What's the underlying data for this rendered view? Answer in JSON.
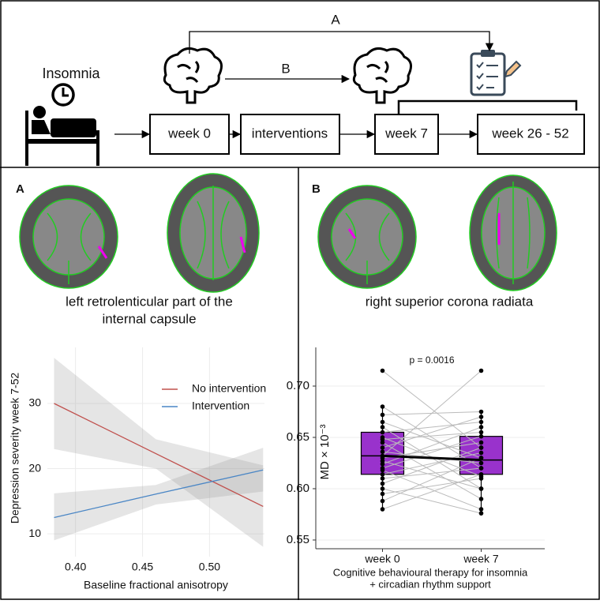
{
  "figure": {
    "top": {
      "arrow_a": "A",
      "arrow_b": "B",
      "condition": "Insomnia",
      "steps": [
        "week 0",
        "interventions",
        "week 7",
        "week 26 - 52"
      ]
    },
    "panels": [
      {
        "label": "A",
        "region": [
          "left retrolenticular part of the",
          "internal capsule"
        ]
      },
      {
        "label": "B",
        "region": [
          "right superior corona radiata"
        ]
      }
    ]
  },
  "chart_data": [
    {
      "type": "line",
      "ylabel": "Depression severity week 7-52",
      "xlabel": "Baseline fractional anisotropy",
      "xlim": [
        0.379,
        0.541
      ],
      "xticks": [
        {
          "value": 0.4,
          "label": "0.40"
        },
        {
          "value": 0.45,
          "label": "0.45"
        },
        {
          "value": 0.5,
          "label": "0.50"
        }
      ],
      "ylim": [
        6.5,
        38.6
      ],
      "yticks": [
        10,
        20,
        30
      ],
      "grid": true,
      "legend": "upper right",
      "x": [
        0.384,
        0.46,
        0.54
      ],
      "series": [
        {
          "name": "No intervention",
          "color": "#c0504d",
          "values": [
            30,
            22.3,
            14.2
          ],
          "ci_lower": [
            23,
            20,
            8
          ],
          "ci_upper": [
            37,
            24.5,
            20.5
          ]
        },
        {
          "name": "Intervention",
          "color": "#4a86c5",
          "values": [
            12.5,
            16.1,
            19.8
          ],
          "ci_lower": [
            9,
            14.5,
            16.5
          ],
          "ci_upper": [
            16.2,
            17.5,
            23.2
          ]
        }
      ]
    },
    {
      "type": "box",
      "annotation": "p = 0.0016",
      "ylabel": "MD × 10⁻³",
      "xlabel": [
        "Cognitive behavioural therapy for insomnia",
        "+ circadian rhythm support"
      ],
      "categories": [
        "week 0",
        "week 7"
      ],
      "color": "#9932cc",
      "grid": true,
      "ylim": [
        0.5415,
        0.7377
      ],
      "yticks": [
        {
          "value": 0.55,
          "label": "0.55"
        },
        {
          "value": 0.6,
          "label": "0.60"
        },
        {
          "value": 0.65,
          "label": "0.65"
        },
        {
          "value": 0.7,
          "label": "0.70"
        }
      ],
      "boxes": [
        {
          "min": 0.58,
          "q1": 0.614,
          "median": 0.632,
          "q3": 0.655,
          "max": 0.68
        },
        {
          "min": 0.576,
          "q1": 0.614,
          "median": 0.628,
          "q3": 0.651,
          "max": 0.675
        }
      ],
      "points": [
        [
          0.715,
          0.68,
          0.672,
          0.665,
          0.66,
          0.655,
          0.65,
          0.648,
          0.645,
          0.64,
          0.636,
          0.632,
          0.63,
          0.627,
          0.624,
          0.62,
          0.618,
          0.614,
          0.61,
          0.605,
          0.6,
          0.595,
          0.588,
          0.58
        ],
        [
          0.64,
          0.62,
          0.675,
          0.63,
          0.6,
          0.665,
          0.612,
          0.655,
          0.59,
          0.67,
          0.625,
          0.715,
          0.645,
          0.6,
          0.66,
          0.651,
          0.58,
          0.635,
          0.62,
          0.64,
          0.576,
          0.61,
          0.63,
          0.614
        ]
      ]
    }
  ]
}
